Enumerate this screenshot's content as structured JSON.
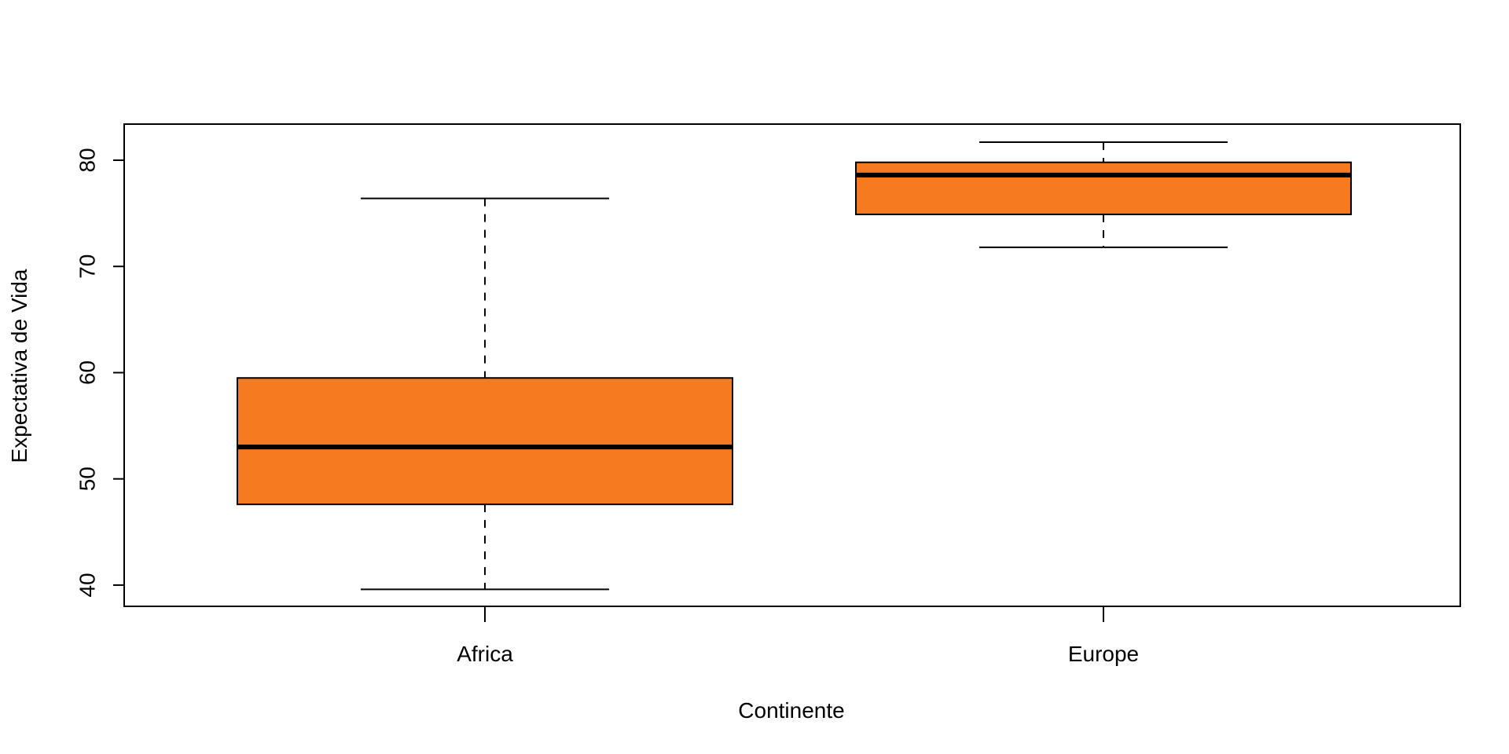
{
  "chart_data": {
    "type": "boxplot",
    "title": "",
    "xlabel": "Continente",
    "ylabel": "Expectativa de Vida",
    "categories": [
      "Africa",
      "Europe"
    ],
    "boxes": [
      {
        "category": "Africa",
        "whisker_low": 39.6,
        "q1": 47.6,
        "median": 53.0,
        "q3": 59.5,
        "whisker_high": 76.4
      },
      {
        "category": "Europe",
        "whisker_low": 71.8,
        "q1": 74.9,
        "median": 78.6,
        "q3": 79.8,
        "whisker_high": 81.7
      }
    ],
    "yticks": [
      40,
      50,
      60,
      70,
      80
    ],
    "ylim": [
      38,
      83.4
    ],
    "grid": false,
    "box_fill": "#F57A20",
    "line_color": "#000000"
  }
}
